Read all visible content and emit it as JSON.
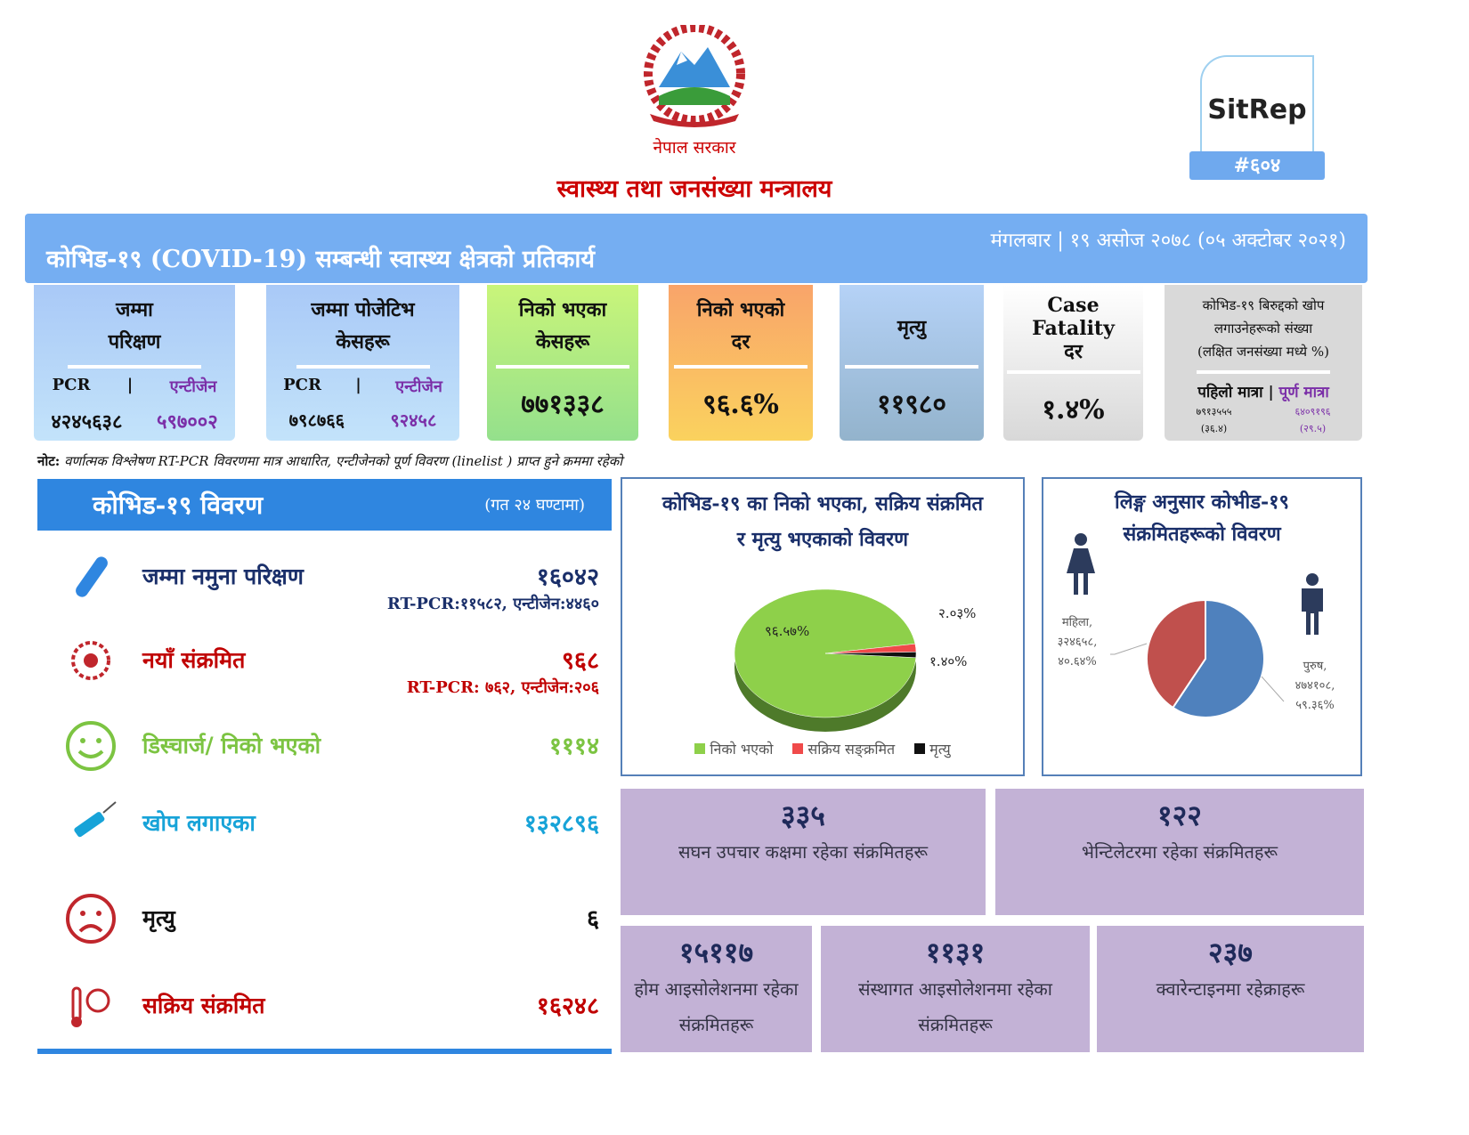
{
  "header": {
    "government": "नेपाल सरकार",
    "ministry": "स्वास्थ्य तथा जनसंख्या मन्त्रालय",
    "logo": "Nepal government emblem",
    "sitrep_label": "SitRep",
    "sitrep_number": "#६०४"
  },
  "banner": {
    "title": "कोभिड-१९ (COVID-19) सम्बन्धी स्वास्थ्य क्षेत्रको प्रतिकार्य",
    "date": "मंगलबार | १९ असोज २०७८ (०५ अक्टोबर २०२१)"
  },
  "cards": [
    {
      "title1": "जम्मा",
      "title2": "परिक्षण",
      "pcr_label": "PCR",
      "sep": "|",
      "antigen_label": "एन्टीजेन",
      "pcr": "४२४५६३८",
      "antigen": "५९७००२"
    },
    {
      "title1": "जम्मा पोजेटिभ",
      "title2": "केसहरू",
      "pcr_label": "PCR",
      "sep": "|",
      "antigen_label": "एन्टीजेन",
      "pcr": "७९८७६६",
      "antigen": "९२४५८"
    },
    {
      "title1": "निको भएका",
      "title2": "केसहरू",
      "value": "७७१३३८"
    },
    {
      "title1": "निको भएको",
      "title2": "दर",
      "value": "९६.६%"
    },
    {
      "title1": "मृत्यु",
      "value": "११९८०"
    },
    {
      "title1": "Case",
      "title2": "Fatality",
      "title3": "दर",
      "value": "१.४%"
    },
    {
      "title1": "कोभिड-१९ बिरुद्दको खोप",
      "title2": "लगाउनेहरूको संख्या",
      "title3": "(लक्षित जनसंख्या मध्ये %)",
      "first_label": "पहिलो मात्रा",
      "sep": "|",
      "full_label": "पूर्ण मात्रा",
      "first": "७९१३५५५",
      "first_pct": "(३६.४)",
      "full": "६४०९१९६",
      "full_pct": "(२९.५)"
    }
  ],
  "note": {
    "label": "नोट:",
    "text": "वर्णात्मक विश्लेषण RT-PCR विवरणमा मात्र आधारित, एन्टीजेनको पूर्ण विवरण (linelist ) प्राप्त हुने क्रममा रहेको"
  },
  "details": {
    "title": "कोभिड-१९ विवरण",
    "period": "(गत २४ घण्टामा)",
    "rows": [
      {
        "icon": "test-tube-icon",
        "label": "जम्मा नमुना परिक्षण",
        "value": "१६०४२",
        "sub": "RT-PCR:११५८२, एन्टीजेन:४४६०",
        "color": "#1a2f6a"
      },
      {
        "icon": "virus-icon",
        "label": "नयाँ संक्रमित",
        "value": "९६८",
        "sub": "RT-PCR: ७६२, एन्टीजेन:२०६",
        "color": "#c00000"
      },
      {
        "icon": "smile-icon",
        "label": "डिस्चार्ज/ निको भएको",
        "value": "१११४",
        "color": "#7cc442"
      },
      {
        "icon": "syringe-icon",
        "label": "खोप लगाएका",
        "value": "१३२८९६",
        "color": "#17a3d8"
      },
      {
        "icon": "sad-face-icon",
        "label": "मृत्यु",
        "value": "६",
        "color": "#111111"
      },
      {
        "icon": "thermometer-patient-icon",
        "label": "सक्रिय संक्रमित",
        "value": "१६२४८",
        "color": "#c00000"
      }
    ]
  },
  "chart_data": [
    {
      "type": "pie",
      "title": "कोभिड-१९ का निको भएका, सक्रिय संक्रमित र मृत्यु भएकाको विवरण",
      "categories": [
        "निको भएको",
        "सक्रिय सङ्क्रमित",
        "मृत्यु"
      ],
      "values": [
        96.57,
        2.03,
        1.4
      ],
      "labels": [
        "९६.५७%",
        "२.०३%",
        "१.४०%"
      ],
      "colors": [
        "#8ed04a",
        "#f04a4a",
        "#111111"
      ],
      "legend": "bottom"
    },
    {
      "type": "pie",
      "title": "लिङ्ग अनुसार कोभीड-१९ संक्रमितहरूको विवरण",
      "categories": [
        "महिला",
        "पुरुष"
      ],
      "values": [
        324658,
        474108
      ],
      "labels": [
        [
          "महिला,",
          "३२४६५८,",
          "४०.६४%"
        ],
        [
          "पुरुष,",
          "४७४१०८,",
          "५९.३६%"
        ]
      ],
      "colors": [
        "#c0504d",
        "#4f81bd"
      ]
    }
  ],
  "boxes": [
    {
      "n": "३३५",
      "l": "सघन उपचार कक्षमा रहेका संक्रमितहरू"
    },
    {
      "n": "१२२",
      "l": "भेन्टिलेटरमा रहेका संक्रमितहरू"
    },
    {
      "n": "१५११७",
      "l": "होम आइसोलेशनमा रहेका संक्रमितहरू"
    },
    {
      "n": "११३१",
      "l": "संस्थागत आइसोलेशनमा रहेका संक्रमितहरू"
    },
    {
      "n": "२३७",
      "l": "क्वारेन्टाइनमा रहेक्राहरू"
    }
  ]
}
